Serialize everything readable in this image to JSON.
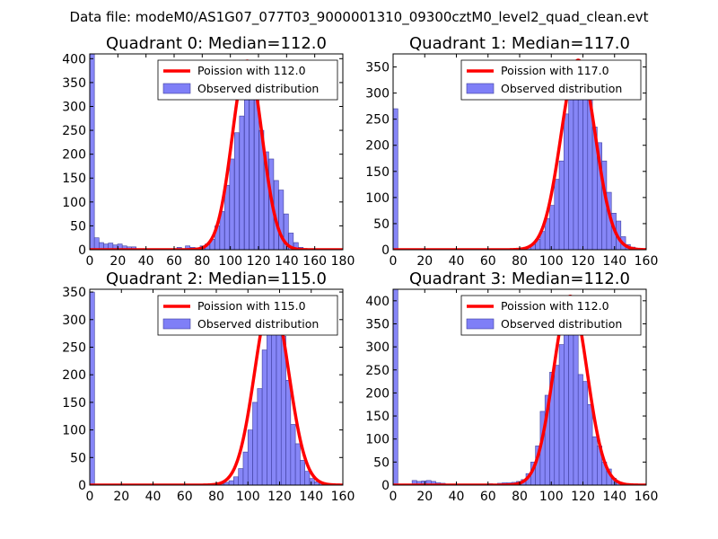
{
  "figure_title": "Data file: modeM0/AS1G07_077T03_9000001310_09300cztM0_level2_quad_clean.evt",
  "colors": {
    "bar_fill": "#7f7ff7",
    "bar_edge": "#3f3f9f",
    "poisson_line": "#ff0000",
    "axes": "#000000",
    "background": "#ffffff"
  },
  "chart_data": [
    {
      "type": "bar",
      "title": "Quadrant 0: Median=112.0",
      "xlim": [
        0,
        180
      ],
      "ylim": [
        0,
        410
      ],
      "xticks": [
        0,
        20,
        40,
        60,
        80,
        100,
        120,
        140,
        160,
        180
      ],
      "yticks": [
        0,
        50,
        100,
        150,
        200,
        250,
        300,
        350,
        400
      ],
      "legend_position": "top-right",
      "median": 112.0,
      "poisson_label": "Poission with 112.0",
      "hist_label": "Observed distribution",
      "bin_width": 3.3,
      "bins": [
        [
          0,
          410
        ],
        [
          3.3,
          25
        ],
        [
          6.6,
          15
        ],
        [
          9.9,
          12
        ],
        [
          13.2,
          14
        ],
        [
          16.5,
          10
        ],
        [
          19.8,
          12
        ],
        [
          23.1,
          8
        ],
        [
          26.4,
          6
        ],
        [
          29.7,
          6
        ],
        [
          62,
          5
        ],
        [
          68,
          8
        ],
        [
          71.5,
          5
        ],
        [
          75,
          4
        ],
        [
          78.5,
          8
        ],
        [
          82,
          12
        ],
        [
          85.5,
          22
        ],
        [
          89,
          50
        ],
        [
          92.5,
          80
        ],
        [
          96,
          135
        ],
        [
          99.5,
          190
        ],
        [
          103,
          245
        ],
        [
          106.5,
          280
        ],
        [
          110,
          350
        ],
        [
          113.5,
          375
        ],
        [
          117,
          330
        ],
        [
          120.5,
          250
        ],
        [
          124,
          205
        ],
        [
          127.5,
          190
        ],
        [
          131,
          145
        ],
        [
          134.5,
          125
        ],
        [
          138,
          75
        ],
        [
          141.5,
          35
        ],
        [
          145,
          15
        ],
        [
          148.5,
          5
        ]
      ],
      "poisson_mean": 112.0,
      "poisson_peak": 395
    },
    {
      "type": "bar",
      "title": "Quadrant 1: Median=117.0",
      "xlim": [
        0,
        160
      ],
      "ylim": [
        0,
        375
      ],
      "xticks": [
        0,
        20,
        40,
        60,
        80,
        100,
        120,
        140,
        160
      ],
      "yticks": [
        0,
        50,
        100,
        150,
        200,
        250,
        300,
        350
      ],
      "legend_position": "top-right",
      "median": 117.0,
      "poisson_label": "Poission with 117.0",
      "hist_label": "Observed distribution",
      "bin_width": 3.0,
      "bins": [
        [
          0,
          270
        ],
        [
          75,
          2
        ],
        [
          78,
          2
        ],
        [
          81,
          3
        ],
        [
          84,
          5
        ],
        [
          87,
          10
        ],
        [
          90,
          20
        ],
        [
          93,
          35
        ],
        [
          96,
          60
        ],
        [
          99,
          85
        ],
        [
          102,
          135
        ],
        [
          105,
          170
        ],
        [
          108,
          260
        ],
        [
          111,
          300
        ],
        [
          114,
          350
        ],
        [
          117,
          340
        ],
        [
          120,
          320
        ],
        [
          123,
          290
        ],
        [
          126,
          235
        ],
        [
          129,
          205
        ],
        [
          132,
          170
        ],
        [
          135,
          110
        ],
        [
          138,
          70
        ],
        [
          141,
          55
        ],
        [
          144,
          25
        ],
        [
          147,
          10
        ],
        [
          150,
          5
        ]
      ],
      "poisson_mean": 117.0,
      "poisson_peak": 363
    },
    {
      "type": "bar",
      "title": "Quadrant 2: Median=115.0",
      "xlim": [
        0,
        160
      ],
      "ylim": [
        0,
        355
      ],
      "xticks": [
        0,
        20,
        40,
        60,
        80,
        100,
        120,
        140,
        160
      ],
      "yticks": [
        0,
        50,
        100,
        150,
        200,
        250,
        300,
        350
      ],
      "legend_position": "top-right",
      "median": 115.0,
      "poisson_label": "Poission with 115.0",
      "hist_label": "Observed distribution",
      "bin_width": 3.0,
      "bins": [
        [
          0,
          350
        ],
        [
          82,
          2
        ],
        [
          85,
          5
        ],
        [
          88,
          8
        ],
        [
          91,
          15
        ],
        [
          94,
          30
        ],
        [
          97,
          60
        ],
        [
          100,
          100
        ],
        [
          103,
          150
        ],
        [
          106,
          175
        ],
        [
          109,
          245
        ],
        [
          112,
          285
        ],
        [
          115,
          340
        ],
        [
          118,
          320
        ],
        [
          121,
          270
        ],
        [
          124,
          190
        ],
        [
          127,
          110
        ],
        [
          130,
          75
        ],
        [
          133,
          45
        ],
        [
          136,
          25
        ],
        [
          139,
          12
        ],
        [
          142,
          6
        ],
        [
          145,
          3
        ]
      ],
      "poisson_mean": 115.0,
      "poisson_peak": 340
    },
    {
      "type": "bar",
      "title": "Quadrant 3: Median=112.0",
      "xlim": [
        0,
        160
      ],
      "ylim": [
        0,
        425
      ],
      "xticks": [
        0,
        20,
        40,
        60,
        80,
        100,
        120,
        140,
        160
      ],
      "yticks": [
        0,
        50,
        100,
        150,
        200,
        250,
        300,
        350,
        400
      ],
      "legend_position": "top-right",
      "median": 112.0,
      "poisson_label": "Poission with 112.0",
      "hist_label": "Observed distribution",
      "bin_width": 3.0,
      "bins": [
        [
          0,
          425
        ],
        [
          12,
          10
        ],
        [
          15,
          8
        ],
        [
          18,
          9
        ],
        [
          21,
          10
        ],
        [
          24,
          8
        ],
        [
          27,
          5
        ],
        [
          30,
          4
        ],
        [
          60,
          3
        ],
        [
          66,
          4
        ],
        [
          69,
          5
        ],
        [
          72,
          5
        ],
        [
          75,
          6
        ],
        [
          78,
          8
        ],
        [
          81,
          12
        ],
        [
          84,
          25
        ],
        [
          87,
          50
        ],
        [
          90,
          85
        ],
        [
          93,
          160
        ],
        [
          96,
          195
        ],
        [
          99,
          245
        ],
        [
          102,
          260
        ],
        [
          105,
          305
        ],
        [
          108,
          380
        ],
        [
          111,
          400
        ],
        [
          114,
          350
        ],
        [
          117,
          240
        ],
        [
          120,
          225
        ],
        [
          123,
          175
        ],
        [
          126,
          105
        ],
        [
          129,
          85
        ],
        [
          132,
          50
        ],
        [
          135,
          35
        ],
        [
          138,
          15
        ],
        [
          141,
          7
        ],
        [
          144,
          4
        ]
      ],
      "poisson_mean": 112.0,
      "poisson_peak": 410
    }
  ]
}
